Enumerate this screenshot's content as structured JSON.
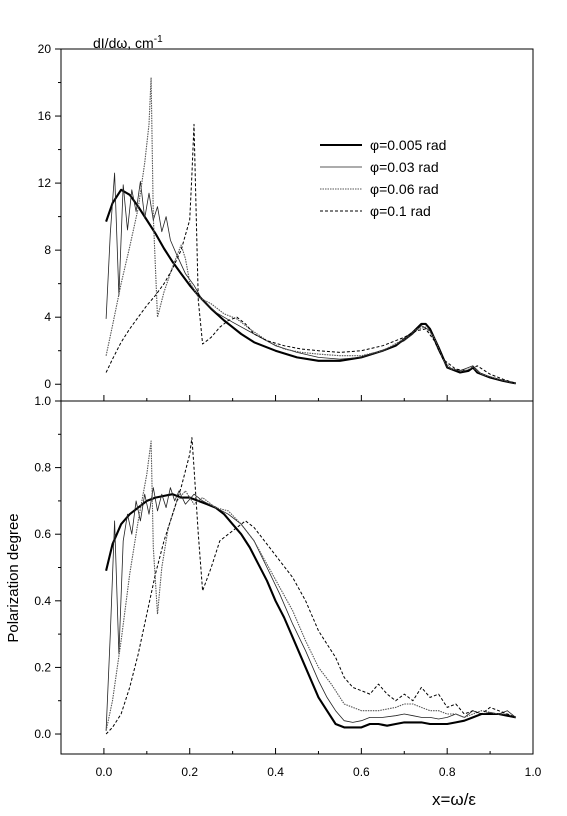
{
  "chart_data": [
    {
      "type": "line",
      "title": "",
      "ylabel": "dI/dω, cm",
      "ylabel_superscript": "-1",
      "xlabel": "",
      "xlim": [
        -0.1,
        1.0
      ],
      "ylim": [
        -1,
        20
      ],
      "yticks": [
        0,
        4,
        8,
        12,
        16,
        20
      ],
      "ytick_labels": [
        "0",
        "4",
        "8",
        "12",
        "16",
        "20"
      ],
      "grid": false,
      "legend_position": "top-right",
      "series": [
        {
          "name": "φ=0.005 rad",
          "style": "thick",
          "x": [
            0.005,
            0.02,
            0.04,
            0.06,
            0.08,
            0.1,
            0.12,
            0.14,
            0.16,
            0.18,
            0.2,
            0.22,
            0.25,
            0.28,
            0.3,
            0.32,
            0.35,
            0.4,
            0.45,
            0.5,
            0.55,
            0.6,
            0.65,
            0.68,
            0.7,
            0.72,
            0.74,
            0.75,
            0.76,
            0.78,
            0.8,
            0.83,
            0.85,
            0.86,
            0.87,
            0.9,
            0.93,
            0.96
          ],
          "values": [
            9.7,
            10.8,
            11.6,
            11.3,
            10.6,
            9.8,
            9.0,
            8.1,
            7.3,
            6.6,
            5.9,
            5.3,
            4.5,
            3.8,
            3.4,
            3.0,
            2.5,
            2.0,
            1.6,
            1.4,
            1.4,
            1.6,
            2.0,
            2.3,
            2.7,
            3.1,
            3.6,
            3.6,
            3.3,
            2.2,
            1.0,
            0.7,
            0.8,
            1.0,
            0.7,
            0.4,
            0.2,
            0.05
          ]
        },
        {
          "name": "φ=0.03 rad",
          "style": "thin",
          "x": [
            0.005,
            0.015,
            0.025,
            0.035,
            0.045,
            0.055,
            0.065,
            0.075,
            0.085,
            0.095,
            0.105,
            0.115,
            0.125,
            0.135,
            0.145,
            0.155,
            0.17,
            0.19,
            0.21,
            0.23,
            0.26,
            0.3,
            0.35,
            0.4,
            0.45,
            0.5,
            0.55,
            0.6,
            0.65,
            0.7,
            0.72,
            0.74,
            0.76,
            0.78,
            0.8,
            0.83,
            0.86,
            0.88,
            0.92,
            0.96
          ],
          "values": [
            3.9,
            9.0,
            12.6,
            5.3,
            11.9,
            9.2,
            11.6,
            10.3,
            12.1,
            9.9,
            11.4,
            9.8,
            10.6,
            9.1,
            10.0,
            8.6,
            7.7,
            6.6,
            5.9,
            5.0,
            4.3,
            3.7,
            3.0,
            2.3,
            1.9,
            1.6,
            1.5,
            1.6,
            2.0,
            2.6,
            3.0,
            3.5,
            3.2,
            2.0,
            1.0,
            0.8,
            1.1,
            0.6,
            0.3,
            0.05
          ]
        },
        {
          "name": "φ=0.06 rad",
          "style": "dotted",
          "x": [
            0.005,
            0.02,
            0.04,
            0.06,
            0.08,
            0.095,
            0.105,
            0.11,
            0.115,
            0.125,
            0.14,
            0.16,
            0.18,
            0.19,
            0.2,
            0.22,
            0.25,
            0.28,
            0.31,
            0.34,
            0.38,
            0.42,
            0.46,
            0.5,
            0.55,
            0.6,
            0.65,
            0.7,
            0.73,
            0.75,
            0.77,
            0.79,
            0.81,
            0.84,
            0.86,
            0.88,
            0.92,
            0.96
          ],
          "values": [
            1.7,
            3.5,
            6.0,
            8.2,
            10.5,
            13.2,
            15.5,
            18.3,
            10.0,
            4.0,
            5.5,
            7.0,
            8.3,
            7.5,
            6.1,
            5.2,
            4.8,
            4.2,
            3.9,
            3.3,
            2.6,
            2.1,
            1.9,
            1.8,
            1.7,
            1.7,
            2.0,
            2.7,
            3.3,
            3.4,
            2.8,
            1.5,
            0.9,
            0.8,
            1.0,
            0.6,
            0.3,
            0.05
          ]
        },
        {
          "name": "φ=0.1 rad",
          "style": "dashed",
          "x": [
            0.005,
            0.02,
            0.04,
            0.06,
            0.08,
            0.1,
            0.12,
            0.14,
            0.16,
            0.18,
            0.2,
            0.205,
            0.21,
            0.22,
            0.23,
            0.25,
            0.27,
            0.29,
            0.31,
            0.33,
            0.35,
            0.38,
            0.42,
            0.46,
            0.5,
            0.55,
            0.6,
            0.65,
            0.7,
            0.73,
            0.75,
            0.77,
            0.79,
            0.82,
            0.85,
            0.87,
            0.9,
            0.93,
            0.96
          ],
          "values": [
            0.7,
            1.5,
            2.5,
            3.3,
            4.0,
            4.7,
            5.3,
            6.0,
            6.9,
            8.0,
            9.8,
            12.5,
            15.5,
            5.0,
            2.4,
            2.8,
            3.4,
            3.8,
            4.0,
            3.6,
            3.0,
            2.6,
            2.3,
            2.1,
            2.0,
            1.9,
            2.0,
            2.3,
            2.8,
            3.2,
            3.3,
            2.6,
            1.5,
            0.9,
            0.8,
            1.1,
            0.6,
            0.3,
            0.05
          ]
        }
      ]
    },
    {
      "type": "line",
      "title": "",
      "ylabel": "Polarization degree",
      "xlabel": "x=ω/ε",
      "xlim": [
        -0.1,
        1.0
      ],
      "ylim": [
        -0.06,
        1.0
      ],
      "yticks": [
        0.0,
        0.2,
        0.4,
        0.6,
        0.8,
        1.0
      ],
      "ytick_labels": [
        "0.0",
        "0.2",
        "0.4",
        "0.6",
        "0.8",
        "1.0"
      ],
      "xticks": [
        0.0,
        0.2,
        0.4,
        0.6,
        0.8,
        1.0
      ],
      "xtick_labels": [
        "0.0",
        "0.2",
        "0.4",
        "0.6",
        "0.8",
        "1.0"
      ],
      "grid": false,
      "series": [
        {
          "style": "thick",
          "x": [
            0.005,
            0.02,
            0.04,
            0.06,
            0.08,
            0.1,
            0.12,
            0.14,
            0.16,
            0.18,
            0.2,
            0.22,
            0.24,
            0.26,
            0.28,
            0.3,
            0.32,
            0.34,
            0.36,
            0.38,
            0.4,
            0.42,
            0.44,
            0.46,
            0.48,
            0.5,
            0.52,
            0.54,
            0.56,
            0.58,
            0.6,
            0.62,
            0.64,
            0.66,
            0.68,
            0.7,
            0.72,
            0.74,
            0.76,
            0.78,
            0.8,
            0.82,
            0.84,
            0.86,
            0.88,
            0.9,
            0.92,
            0.94,
            0.96
          ],
          "values": [
            0.49,
            0.57,
            0.63,
            0.66,
            0.68,
            0.7,
            0.71,
            0.715,
            0.72,
            0.71,
            0.71,
            0.7,
            0.69,
            0.68,
            0.66,
            0.63,
            0.6,
            0.56,
            0.51,
            0.46,
            0.4,
            0.35,
            0.29,
            0.23,
            0.17,
            0.11,
            0.07,
            0.03,
            0.02,
            0.02,
            0.02,
            0.03,
            0.03,
            0.025,
            0.03,
            0.035,
            0.035,
            0.035,
            0.03,
            0.03,
            0.03,
            0.035,
            0.04,
            0.05,
            0.06,
            0.06,
            0.06,
            0.055,
            0.05
          ]
        },
        {
          "style": "thin",
          "x": [
            0.005,
            0.015,
            0.025,
            0.035,
            0.045,
            0.055,
            0.065,
            0.075,
            0.085,
            0.095,
            0.105,
            0.115,
            0.125,
            0.135,
            0.145,
            0.155,
            0.165,
            0.175,
            0.19,
            0.21,
            0.23,
            0.26,
            0.29,
            0.32,
            0.35,
            0.38,
            0.41,
            0.44,
            0.47,
            0.5,
            0.52,
            0.54,
            0.56,
            0.58,
            0.6,
            0.62,
            0.65,
            0.68,
            0.7,
            0.72,
            0.74,
            0.76,
            0.78,
            0.8,
            0.82,
            0.84,
            0.86,
            0.88,
            0.9,
            0.92,
            0.94,
            0.96
          ],
          "values": [
            0.01,
            0.3,
            0.64,
            0.24,
            0.58,
            0.66,
            0.6,
            0.7,
            0.64,
            0.72,
            0.66,
            0.74,
            0.67,
            0.72,
            0.68,
            0.74,
            0.7,
            0.73,
            0.69,
            0.72,
            0.7,
            0.68,
            0.66,
            0.63,
            0.58,
            0.5,
            0.42,
            0.33,
            0.25,
            0.16,
            0.11,
            0.07,
            0.04,
            0.035,
            0.04,
            0.05,
            0.05,
            0.055,
            0.06,
            0.055,
            0.05,
            0.05,
            0.045,
            0.05,
            0.06,
            0.05,
            0.07,
            0.06,
            0.065,
            0.06,
            0.07,
            0.05
          ]
        },
        {
          "style": "dotted",
          "x": [
            0.005,
            0.02,
            0.04,
            0.06,
            0.08,
            0.1,
            0.11,
            0.115,
            0.125,
            0.135,
            0.15,
            0.17,
            0.19,
            0.21,
            0.23,
            0.26,
            0.29,
            0.32,
            0.35,
            0.38,
            0.41,
            0.44,
            0.47,
            0.5,
            0.53,
            0.56,
            0.6,
            0.64,
            0.68,
            0.7,
            0.72,
            0.74,
            0.76,
            0.78,
            0.8,
            0.82,
            0.84,
            0.86,
            0.88,
            0.9,
            0.92,
            0.94,
            0.96
          ],
          "values": [
            0.01,
            0.1,
            0.28,
            0.48,
            0.64,
            0.78,
            0.88,
            0.56,
            0.36,
            0.5,
            0.62,
            0.7,
            0.73,
            0.69,
            0.71,
            0.68,
            0.67,
            0.63,
            0.58,
            0.51,
            0.44,
            0.37,
            0.28,
            0.2,
            0.15,
            0.09,
            0.07,
            0.07,
            0.08,
            0.09,
            0.09,
            0.08,
            0.07,
            0.07,
            0.06,
            0.06,
            0.05,
            0.06,
            0.07,
            0.065,
            0.06,
            0.06,
            0.05
          ]
        },
        {
          "style": "dashed",
          "x": [
            0.005,
            0.02,
            0.04,
            0.06,
            0.08,
            0.1,
            0.12,
            0.14,
            0.16,
            0.18,
            0.2,
            0.205,
            0.21,
            0.22,
            0.23,
            0.25,
            0.27,
            0.29,
            0.31,
            0.33,
            0.35,
            0.38,
            0.41,
            0.44,
            0.47,
            0.5,
            0.52,
            0.54,
            0.56,
            0.58,
            0.6,
            0.62,
            0.64,
            0.66,
            0.68,
            0.7,
            0.72,
            0.74,
            0.76,
            0.78,
            0.8,
            0.82,
            0.84,
            0.86,
            0.88,
            0.9,
            0.92,
            0.94,
            0.96
          ],
          "values": [
            0.0,
            0.02,
            0.06,
            0.14,
            0.24,
            0.36,
            0.48,
            0.58,
            0.66,
            0.74,
            0.84,
            0.89,
            0.8,
            0.6,
            0.43,
            0.5,
            0.58,
            0.6,
            0.62,
            0.64,
            0.62,
            0.57,
            0.52,
            0.47,
            0.4,
            0.31,
            0.27,
            0.23,
            0.17,
            0.14,
            0.13,
            0.12,
            0.15,
            0.12,
            0.1,
            0.12,
            0.1,
            0.14,
            0.11,
            0.12,
            0.08,
            0.09,
            0.06,
            0.07,
            0.06,
            0.08,
            0.07,
            0.06,
            0.05
          ]
        }
      ]
    }
  ]
}
